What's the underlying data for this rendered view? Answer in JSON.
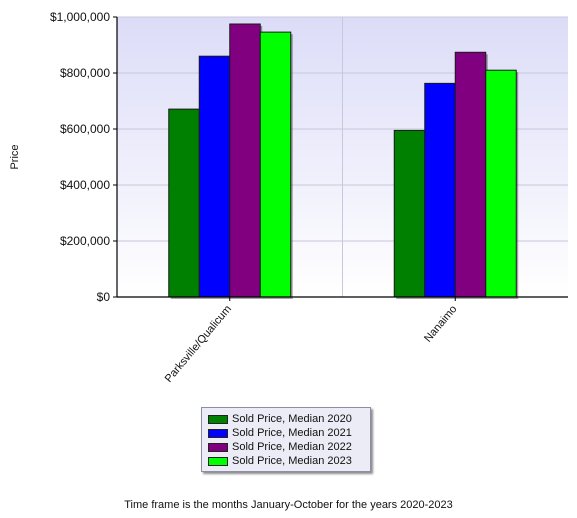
{
  "chart_data": {
    "type": "bar",
    "categories": [
      "Parksville/Qualicum",
      "Nanaimo"
    ],
    "series": [
      {
        "name": "Sold Price, Median 2020",
        "color": "#008000",
        "values": [
          671000,
          595000
        ]
      },
      {
        "name": "Sold Price, Median 2021",
        "color": "#0000ff",
        "values": [
          860000,
          763000
        ]
      },
      {
        "name": "Sold Price, Median 2022",
        "color": "#800080",
        "values": [
          975000,
          874000
        ]
      },
      {
        "name": "Sold Price, Median 2023",
        "color": "#00ff00",
        "values": [
          946000,
          810000
        ]
      }
    ],
    "ylabel": "Price",
    "ylim": [
      0,
      1000000
    ],
    "yticks": [
      "$0",
      "$200,000",
      "$400,000",
      "$600,000",
      "$800,000",
      "$1,000,000"
    ],
    "grid": true,
    "legend_position": "bottom-center"
  },
  "footnote": "Time frame is the months January-October for the years 2020-2023"
}
